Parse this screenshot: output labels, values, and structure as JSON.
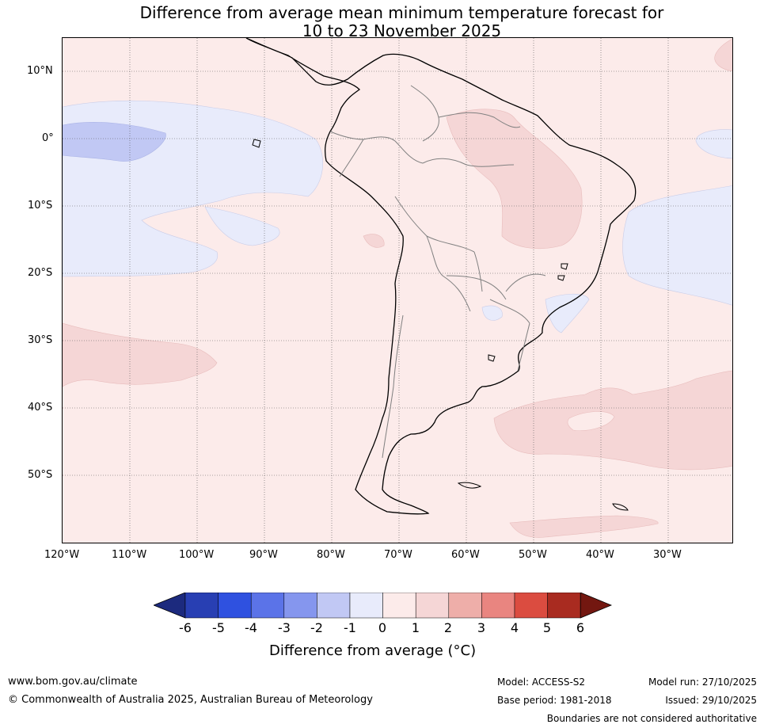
{
  "title": {
    "line1": "Difference from average mean minimum temperature forecast for",
    "line2": "10 to 23 November 2025"
  },
  "map": {
    "latitude_labels": [
      "10°N",
      "0°",
      "10°S",
      "20°S",
      "30°S",
      "40°S",
      "50°S"
    ],
    "longitude_labels": [
      "120°W",
      "110°W",
      "100°W",
      "90°W",
      "80°W",
      "70°W",
      "60°W",
      "50°W",
      "40°W",
      "30°W"
    ],
    "anomaly_fill_colors": {
      "minus_1_to_0": "#e8ebfb",
      "minus_2_to_minus_1": "#c1c8f4",
      "0_to_1": "#fcebea",
      "1_to_2": "#f5d6d6"
    }
  },
  "colorbar": {
    "ticks": [
      "-6",
      "-5",
      "-4",
      "-3",
      "-2",
      "-1",
      "0",
      "1",
      "2",
      "3",
      "4",
      "5",
      "6"
    ],
    "colors": [
      "#1c2a7e",
      "#283fb3",
      "#2f51e0",
      "#5b73e8",
      "#8596ee",
      "#c1c8f4",
      "#e8ebfb",
      "#fcebea",
      "#f5d6d6",
      "#eeaea9",
      "#e98580",
      "#db4c40",
      "#a92b20",
      "#731710"
    ],
    "label": "Difference from average (°C)"
  },
  "footer": {
    "website": "www.bom.gov.au/climate",
    "copyright": "© Commonwealth of Australia 2025, Australian Bureau of Meteorology",
    "model": "Model: ACCESS-S2",
    "base_period": "Base period: 1981-2018",
    "model_run": "Model run: 27/10/2025",
    "issued": "Issued: 29/10/2025",
    "disclaimer": "Boundaries are not considered authoritative"
  }
}
